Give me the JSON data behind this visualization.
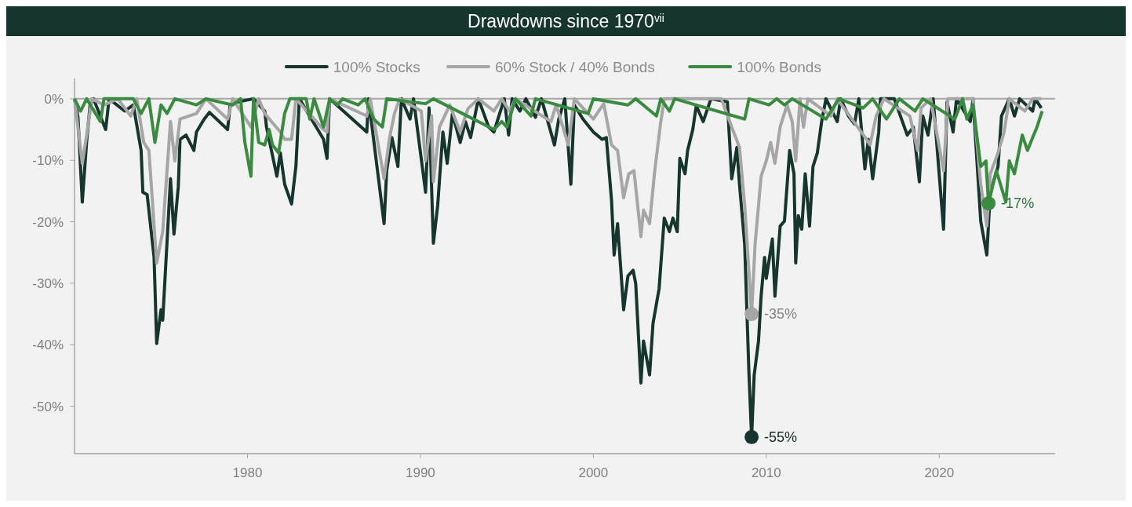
{
  "chart_data": {
    "type": "line",
    "title": "Drawdowns since 1970$^{vii}$",
    "legend": "top",
    "grid": false,
    "line_style": "solid",
    "marker": "none",
    "xlim": [
      1970,
      2026.7
    ],
    "xticks": [
      1980,
      1990,
      2000,
      2010,
      2020
    ],
    "ylim": [
      -57.7,
      3.3
    ],
    "yticks": [
      {
        "value": 0,
        "label": "0%"
      },
      {
        "value": -10,
        "label": "-10%"
      },
      {
        "value": -20,
        "label": "-20%"
      },
      {
        "value": -30,
        "label": "-30%"
      },
      {
        "value": -40,
        "label": "-40%"
      },
      {
        "value": -50,
        "label": "-50%"
      }
    ],
    "ref_lines": [
      {
        "axis": "y",
        "value": 0,
        "color": "#a6a6a6"
      }
    ],
    "series": [
      {
        "name": "100% Stocks",
        "color": "#17352f",
        "x": [
          1970.0,
          1970.2,
          1970.45,
          1970.7,
          1970.9,
          1971.1,
          1971.8,
          1972.0,
          1972.9,
          1973.4,
          1973.85,
          1973.95,
          1974.2,
          1974.6,
          1974.75,
          1975.0,
          1975.1,
          1975.55,
          1975.75,
          1976.0,
          1976.1,
          1976.45,
          1976.9,
          1977.05,
          1977.5,
          1977.8,
          1978.85,
          1979.0,
          1979.45,
          1980.35,
          1981.0,
          1981.1,
          1981.7,
          1981.9,
          1982.15,
          1982.55,
          1982.8,
          1983.0,
          1984.4,
          1984.6,
          1984.75,
          1986.9,
          1987.0,
          1987.9,
          1988.05,
          1988.35,
          1988.7,
          1988.9,
          1989.4,
          1989.6,
          1990.3,
          1990.5,
          1990.75,
          1991.0,
          1991.3,
          1991.55,
          1991.85,
          1992.3,
          1992.6,
          1992.9,
          1993.35,
          1993.95,
          1994.25,
          1994.85,
          1995.1,
          1995.3,
          1995.75,
          1996.1,
          1996.65,
          1997.0,
          1997.75,
          1998.0,
          1998.35,
          1998.7,
          1998.9,
          1999.4,
          2000.0,
          2000.5,
          2000.75,
          2001.05,
          2001.2,
          2001.4,
          2001.75,
          2002.0,
          2002.3,
          2002.45,
          2002.75,
          2002.9,
          2003.25,
          2003.45,
          2003.8,
          2004.1,
          2004.4,
          2004.6,
          2004.85,
          2005.0,
          2005.3,
          2005.45,
          2005.75,
          2005.95,
          2006.35,
          2006.8,
          2007.75,
          2008.0,
          2008.3,
          2008.45,
          2008.75,
          2009.0,
          2009.15,
          2009.3,
          2009.55,
          2009.7,
          2009.9,
          2010.0,
          2010.35,
          2010.5,
          2010.8,
          2011.05,
          2011.35,
          2011.6,
          2011.7,
          2011.85,
          2012.05,
          2012.25,
          2012.5,
          2012.7,
          2012.95,
          2013.2,
          2013.45,
          2014.1,
          2014.3,
          2014.75,
          2015.1,
          2015.35,
          2015.7,
          2015.9,
          2016.15,
          2016.5,
          2016.6,
          2017.4,
          2018.15,
          2018.5,
          2018.85,
          2019.05,
          2019.35,
          2019.65,
          2020.25,
          2020.45,
          2020.8,
          2021.0,
          2021.8,
          2021.95,
          2022.4,
          2022.75,
          2022.95,
          2023.4,
          2023.6,
          2024.05,
          2024.35,
          2024.65,
          2025.4,
          2025.55,
          2025.9
        ],
        "value_labels": [
          null,
          null,
          null,
          null,
          null,
          null,
          null,
          null,
          null,
          null,
          null,
          null,
          null,
          null,
          null,
          null,
          null,
          null,
          null,
          null,
          null,
          null,
          null,
          null,
          null,
          null,
          null,
          null,
          null,
          null,
          null,
          null,
          null,
          null,
          null,
          null,
          null,
          null,
          null,
          null,
          null,
          null,
          null,
          null,
          null,
          null,
          null,
          null,
          null,
          null,
          null,
          null,
          null,
          null,
          null,
          null,
          null,
          null,
          null,
          null,
          null,
          null,
          null,
          null,
          null,
          null,
          null,
          null,
          null,
          null,
          null,
          null,
          null,
          null,
          null,
          null,
          null,
          null,
          null,
          null,
          null,
          null,
          null,
          null,
          null,
          null,
          null,
          null,
          null,
          null,
          null,
          null,
          null,
          null,
          null,
          null,
          null,
          null,
          null,
          null,
          null,
          null,
          null,
          null,
          null,
          null,
          null,
          null,
          "-55%",
          null,
          null,
          null,
          null,
          null,
          null,
          null,
          null,
          null,
          null,
          null,
          null,
          null,
          null,
          null,
          null,
          null,
          null,
          null,
          null,
          null,
          null,
          null,
          null,
          null,
          null,
          null,
          null,
          null,
          null,
          null,
          null,
          null,
          null,
          null,
          null,
          null,
          null,
          null,
          null,
          null,
          null,
          null,
          null,
          null,
          null,
          null,
          null,
          null,
          null,
          null,
          null,
          null,
          null
        ],
        "values": [
          0,
          -3,
          -16.8,
          -7,
          -1,
          0,
          -5,
          0,
          -2,
          -1,
          -8.4,
          -15.2,
          -15.6,
          -25.8,
          -39.8,
          -34.3,
          -36,
          -13,
          -22,
          -14.3,
          -6.6,
          -5.9,
          -8.4,
          -5.4,
          -3.3,
          -2.2,
          -5,
          -1,
          -0.5,
          0,
          -2,
          -4.6,
          -12.6,
          -8.8,
          -13.9,
          -17.1,
          -11,
          0,
          -6.6,
          -9.7,
          0,
          -5.4,
          0,
          -20.3,
          -11.7,
          -6.3,
          -11,
          0,
          -3.3,
          0,
          -15.2,
          -1.5,
          -23.5,
          -17.3,
          -5.4,
          -10.5,
          -2.4,
          -7.1,
          -3.7,
          -6.3,
          0,
          -4.6,
          -5.4,
          0,
          -5.9,
          0,
          -2,
          0,
          -3,
          0,
          -7.5,
          -3.3,
          0,
          -13.9,
          -1,
          -3.3,
          -5.4,
          -6.6,
          -6.3,
          -16.5,
          -25.4,
          -20.3,
          -34.3,
          -28.8,
          -27.9,
          -30.1,
          -46.2,
          -39.4,
          -44.9,
          -36.5,
          -30.9,
          -19.4,
          -21.6,
          -19.4,
          -21.6,
          -9.7,
          -12.2,
          -8.4,
          -5,
          -1.1,
          -3.7,
          0,
          -0.5,
          -13,
          -7.9,
          -13.9,
          -23.7,
          -44.9,
          -55,
          -44.9,
          -39.4,
          -32.1,
          -25.8,
          -29.2,
          -22.8,
          -32.1,
          -20.7,
          -19.9,
          -8.4,
          -12.2,
          -26.7,
          -19,
          -21.2,
          -12.2,
          -20.7,
          -11,
          -8.8,
          -3.7,
          0,
          -3.7,
          0,
          -2.8,
          -4.1,
          0,
          -11.4,
          -6.6,
          -13,
          -5.4,
          0,
          0,
          -5.9,
          -4.6,
          -13.5,
          -2.8,
          -5.9,
          0,
          -21.2,
          -0.5,
          -5.4,
          0,
          -3.7,
          0,
          -19.9,
          -25.4,
          -15.2,
          -11,
          -2.8,
          0,
          -2.8,
          0,
          -2,
          0,
          -1.5
        ]
      },
      {
        "name": "60% Stock / 40% Bonds",
        "color": "#a6a6a6",
        "x": [
          1970.0,
          1970.45,
          1970.7,
          1971.0,
          1971.7,
          1972.5,
          1973.25,
          1973.6,
          1974.0,
          1974.3,
          1974.75,
          1975.1,
          1975.55,
          1975.8,
          1976.1,
          1977.05,
          1977.6,
          1978.85,
          1979.15,
          1980.2,
          1980.65,
          1981.0,
          1981.9,
          1982.15,
          1982.55,
          1982.8,
          1984.4,
          1984.6,
          1984.75,
          1986.9,
          1987.1,
          1987.9,
          1988.2,
          1988.5,
          1988.8,
          1990.05,
          1990.3,
          1990.65,
          1990.75,
          1991.1,
          1991.7,
          1992.3,
          1992.75,
          1993.35,
          1994.25,
          1994.7,
          1995.15,
          1995.5,
          1997.55,
          1997.85,
          1998.55,
          1998.9,
          2000.0,
          2000.6,
          2001.05,
          2001.4,
          2001.75,
          2002.05,
          2002.35,
          2002.75,
          2002.9,
          2003.25,
          2003.55,
          2003.9,
          2004.1,
          2007.4,
          2008.0,
          2008.45,
          2008.75,
          2009.15,
          2009.35,
          2009.7,
          2010.0,
          2010.25,
          2010.5,
          2010.8,
          2011.2,
          2011.5,
          2011.7,
          2011.95,
          2012.15,
          2012.4,
          2013.75,
          2014.1,
          2015.8,
          2016.0,
          2016.35,
          2016.8,
          2018.3,
          2018.75,
          2018.95,
          2019.5,
          2020.25,
          2020.5,
          2021.95,
          2022.4,
          2022.75,
          2022.95,
          2023.4,
          2023.75,
          2024.05,
          2024.95,
          2025.4,
          2025.9
        ],
        "value_labels": [
          null,
          null,
          null,
          null,
          null,
          null,
          null,
          null,
          null,
          null,
          null,
          null,
          null,
          null,
          null,
          null,
          null,
          null,
          null,
          null,
          null,
          null,
          null,
          null,
          null,
          null,
          null,
          null,
          null,
          null,
          null,
          null,
          null,
          null,
          null,
          null,
          null,
          null,
          null,
          null,
          null,
          null,
          null,
          null,
          null,
          null,
          null,
          null,
          null,
          null,
          null,
          null,
          null,
          null,
          null,
          null,
          null,
          null,
          null,
          null,
          null,
          null,
          null,
          null,
          null,
          null,
          null,
          null,
          null,
          "-35%",
          null,
          null,
          null,
          null,
          null,
          null,
          null,
          null,
          null,
          null,
          null,
          null,
          null,
          null,
          null,
          null,
          null,
          null,
          null,
          null,
          null,
          null,
          null,
          null,
          null,
          null,
          null,
          null,
          null,
          null,
          null,
          null,
          null,
          null
        ],
        "values": [
          0,
          -10.5,
          -5.9,
          0,
          -1,
          0,
          -2.8,
          0,
          -7.1,
          -8.4,
          -26.7,
          -21.6,
          -3.7,
          -10.1,
          -3.3,
          -2.4,
          0,
          -3.3,
          0,
          -4.6,
          0,
          -2.4,
          -5.4,
          -6.6,
          -6.6,
          0,
          -5,
          -5.4,
          0,
          -2.8,
          0,
          -13,
          -6.6,
          -2.4,
          0,
          -2,
          -10.1,
          -2.8,
          -13.5,
          -4.6,
          -1,
          -5.4,
          -1.6,
          0,
          -2,
          0,
          -2,
          0,
          -3.7,
          -1,
          -7.5,
          0,
          -3.3,
          -0.8,
          -7.5,
          -8.4,
          -16.1,
          -12.2,
          -11.7,
          -22.4,
          -18.1,
          -20.3,
          -11.7,
          -3.7,
          0,
          0,
          -4.6,
          -7.9,
          -17.3,
          -35,
          -23.7,
          -12.6,
          -10.1,
          -7.1,
          -10.5,
          -4.6,
          -1,
          -3.7,
          -10.1,
          0,
          -4.6,
          0,
          -2.8,
          0,
          -6.6,
          -7.5,
          -2.8,
          0,
          -2.8,
          -8.4,
          -1.5,
          0,
          -11.7,
          0,
          0,
          -13.9,
          -20.7,
          -12.2,
          -8.8,
          -5.4,
          0,
          -2,
          0,
          0
        ]
      },
      {
        "name": "100% Bonds",
        "color": "#3a8a3f",
        "x": [
          1970.0,
          1970.35,
          1970.7,
          1971.5,
          1971.7,
          1973.4,
          1973.85,
          1974.3,
          1974.65,
          1975.0,
          1975.35,
          1975.8,
          1977.05,
          1977.6,
          1979.15,
          1979.6,
          1979.85,
          1980.2,
          1980.35,
          1980.65,
          1981.0,
          1981.25,
          1981.45,
          1981.8,
          1982.15,
          1982.45,
          1983.4,
          1983.6,
          1983.85,
          1984.4,
          1984.75,
          1985.2,
          1985.5,
          1986.4,
          1986.8,
          1987.3,
          1987.8,
          1988.05,
          1990.3,
          1990.75,
          1994.25,
          1994.7,
          1995.0,
          1995.5,
          1996.4,
          1996.65,
          1999.7,
          2000.0,
          2002.0,
          2002.45,
          2003.65,
          2003.9,
          2004.4,
          2004.7,
          2008.75,
          2009.0,
          2010.15,
          2010.6,
          2011.05,
          2011.5,
          2013.45,
          2014.2,
          2015.6,
          2016.15,
          2016.95,
          2017.7,
          2018.6,
          2019.05,
          2020.9,
          2021.35,
          2021.6,
          2021.95,
          2022.4,
          2022.7,
          2022.85,
          2023.3,
          2023.4,
          2023.85,
          2024.05,
          2024.35,
          2024.8,
          2025.1,
          2025.4,
          2025.65,
          2025.95
        ],
        "value_labels": [
          null,
          null,
          null,
          null,
          null,
          null,
          null,
          null,
          null,
          null,
          null,
          null,
          null,
          null,
          null,
          null,
          null,
          null,
          null,
          null,
          null,
          null,
          null,
          null,
          null,
          null,
          null,
          null,
          null,
          null,
          null,
          null,
          null,
          null,
          null,
          null,
          null,
          null,
          null,
          null,
          null,
          null,
          null,
          null,
          null,
          null,
          null,
          null,
          null,
          null,
          null,
          null,
          null,
          null,
          null,
          null,
          null,
          null,
          null,
          null,
          null,
          null,
          null,
          null,
          null,
          null,
          null,
          null,
          null,
          null,
          null,
          null,
          null,
          null,
          "-17%",
          null,
          null,
          null,
          null,
          null,
          null,
          null,
          null,
          null,
          null
        ],
        "values": [
          0,
          -2,
          0,
          -3.7,
          0,
          0,
          -2.4,
          0,
          -7.1,
          -1,
          -2.4,
          0,
          -1,
          0,
          -1,
          0,
          -7.1,
          -12.6,
          0,
          -7.1,
          -7.5,
          -5,
          -7.5,
          -8.8,
          -2.4,
          0,
          0,
          -3.3,
          0,
          -4.6,
          0,
          -1,
          0,
          -1,
          0,
          -3.3,
          -4.6,
          0,
          -0.8,
          0,
          -5,
          -3.7,
          -4.6,
          0,
          -2.8,
          0,
          -2.4,
          0,
          -1,
          0,
          -2.8,
          0,
          -2,
          0,
          -3.3,
          0,
          -1,
          0,
          -1,
          0,
          -3.3,
          0,
          -1.5,
          0,
          -3.3,
          0,
          -2,
          0,
          -3.3,
          0,
          -3.3,
          -1,
          -11,
          -10.1,
          -17,
          -11.7,
          -12.6,
          -16.8,
          -10.1,
          -12.2,
          -5.9,
          -8.4,
          -6.3,
          -4.6,
          -2
        ]
      }
    ]
  }
}
